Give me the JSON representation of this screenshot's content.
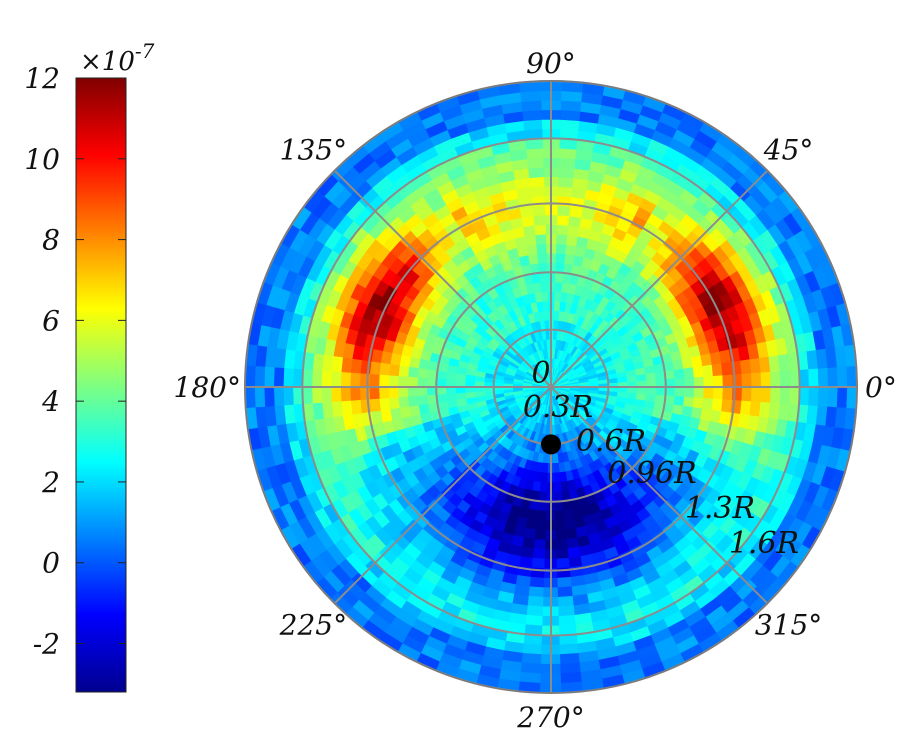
{
  "chart_data": {
    "type": "heatmap",
    "projection": "polar",
    "colormap": "jet",
    "colorbar": {
      "multiplier_label": "×10",
      "multiplier_exponent": "-7",
      "range": [
        -3.2,
        12
      ],
      "ticks": [
        12,
        10,
        8,
        6,
        4,
        2,
        0,
        -2
      ],
      "tick_labels": [
        "12",
        "10",
        "8",
        "6",
        "4",
        "2",
        "0",
        "-2"
      ]
    },
    "angular_ticks": [
      90,
      45,
      0,
      315,
      270,
      225,
      180,
      135
    ],
    "angular_labels": [
      "90°",
      "45°",
      "0°",
      "315°",
      "270°",
      "225°",
      "180°",
      "135°"
    ],
    "radial_ticks": [
      0,
      0.3,
      0.6,
      0.96,
      1.3,
      1.6
    ],
    "radial_labels": [
      "0",
      "0.3R",
      "0.6R",
      "0.96R",
      "1.3R",
      "1.6R"
    ],
    "radial_max": 1.6,
    "grid": true,
    "marker": {
      "label": "",
      "theta_deg": 270,
      "r": 0.3
    },
    "intensity_description": {
      "upper_lobes": {
        "theta_deg": [
          5,
          175
        ],
        "r": [
          0.6,
          1.3
        ],
        "peak": 11
      },
      "lower_lobe": {
        "theta_deg": [
          200,
          340
        ],
        "r": [
          0.3,
          1.1
        ],
        "min": -3
      },
      "outer_ring_value": 0.5,
      "inner_core_value": 2.5
    }
  }
}
